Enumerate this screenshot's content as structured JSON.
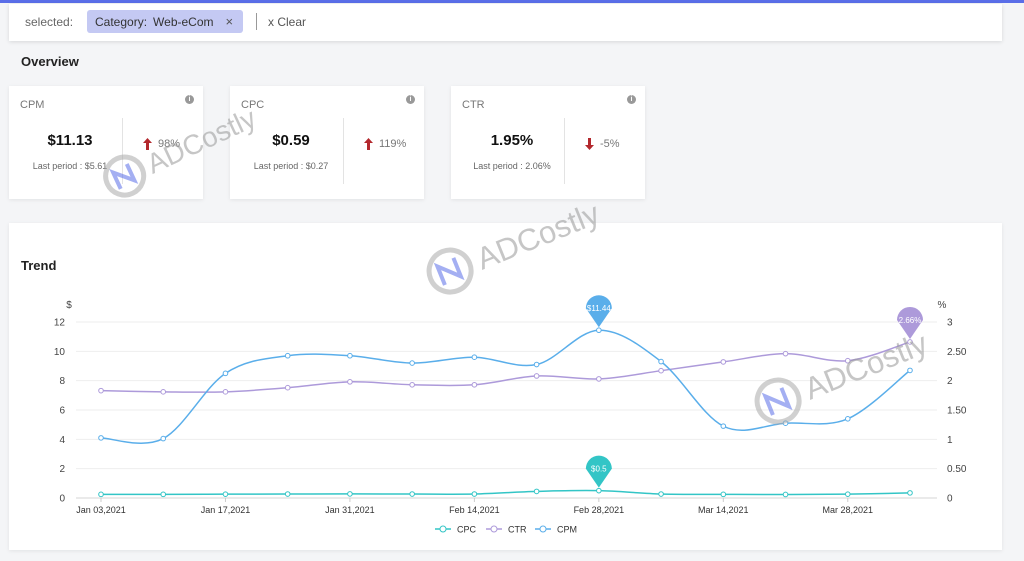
{
  "filter": {
    "label": "selected:",
    "chip_key": "Category:",
    "chip_value": "Web-eCom",
    "chip_close": "×",
    "clear": "x Clear"
  },
  "overview": {
    "title": "Overview",
    "cards": [
      {
        "name": "CPM",
        "value": "$11.13",
        "last": "Last period : $5.61",
        "change": "98%",
        "direction": "up"
      },
      {
        "name": "CPC",
        "value": "$0.59",
        "last": "Last period : $0.27",
        "change": "119%",
        "direction": "up"
      },
      {
        "name": "CTR",
        "value": "1.95%",
        "last": "Last period : 2.06%",
        "change": "-5%",
        "direction": "down"
      }
    ],
    "info_icon": "i"
  },
  "trend": {
    "title": "Trend"
  },
  "watermark": {
    "text": "ADCostly"
  },
  "colors": {
    "accent": "#5a6ee8",
    "cpm": "#5aaeea",
    "ctr": "#ad9ada",
    "cpc": "#33c5c6",
    "arrow": "#b3282d"
  },
  "chart_data": {
    "type": "line",
    "left_axis_label": "$",
    "right_axis_label": "%",
    "ylim_left": [
      0,
      12
    ],
    "ylim_right": [
      0,
      3
    ],
    "left_ticks": [
      "0",
      "2",
      "4",
      "6",
      "8",
      "10",
      "12"
    ],
    "right_ticks": [
      "0",
      "0.50",
      "1",
      "1.50",
      "2",
      "2.50",
      "3"
    ],
    "x_tick_labels": [
      "Jan 03,2021",
      "Jan 17,2021",
      "Jan 31,2021",
      "Feb 14,2021",
      "Feb 28,2021",
      "Mar 14,2021",
      "Mar 28,2021"
    ],
    "x": [
      "Jan 03,2021",
      "Jan 10,2021",
      "Jan 17,2021",
      "Jan 24,2021",
      "Jan 31,2021",
      "Feb 07,2021",
      "Feb 14,2021",
      "Feb 21,2021",
      "Feb 28,2021",
      "Mar 07,2021",
      "Mar 14,2021",
      "Mar 21,2021",
      "Mar 28,2021",
      "Apr 04,2021"
    ],
    "series": [
      {
        "name": "CPC",
        "axis": "left",
        "color": "#33c5c6",
        "values": [
          0.25,
          0.25,
          0.26,
          0.27,
          0.28,
          0.27,
          0.27,
          0.45,
          0.5,
          0.27,
          0.25,
          0.24,
          0.26,
          0.35
        ],
        "pin_index": 8,
        "pin_label": "$0.5"
      },
      {
        "name": "CTR",
        "axis": "right",
        "color": "#ad9ada",
        "values": [
          1.83,
          1.81,
          1.81,
          1.88,
          1.98,
          1.93,
          1.93,
          2.08,
          2.03,
          2.17,
          2.32,
          2.46,
          2.34,
          2.66
        ],
        "pin_index": 13,
        "pin_label": "2.66%"
      },
      {
        "name": "CPM",
        "axis": "left",
        "color": "#5aaeea",
        "values": [
          4.1,
          4.05,
          8.5,
          9.7,
          9.7,
          9.2,
          9.6,
          9.1,
          11.44,
          9.3,
          4.9,
          5.1,
          5.4,
          8.7
        ],
        "pin_index": 8,
        "pin_label": "$11.44"
      }
    ],
    "legend": "bottom-center"
  }
}
